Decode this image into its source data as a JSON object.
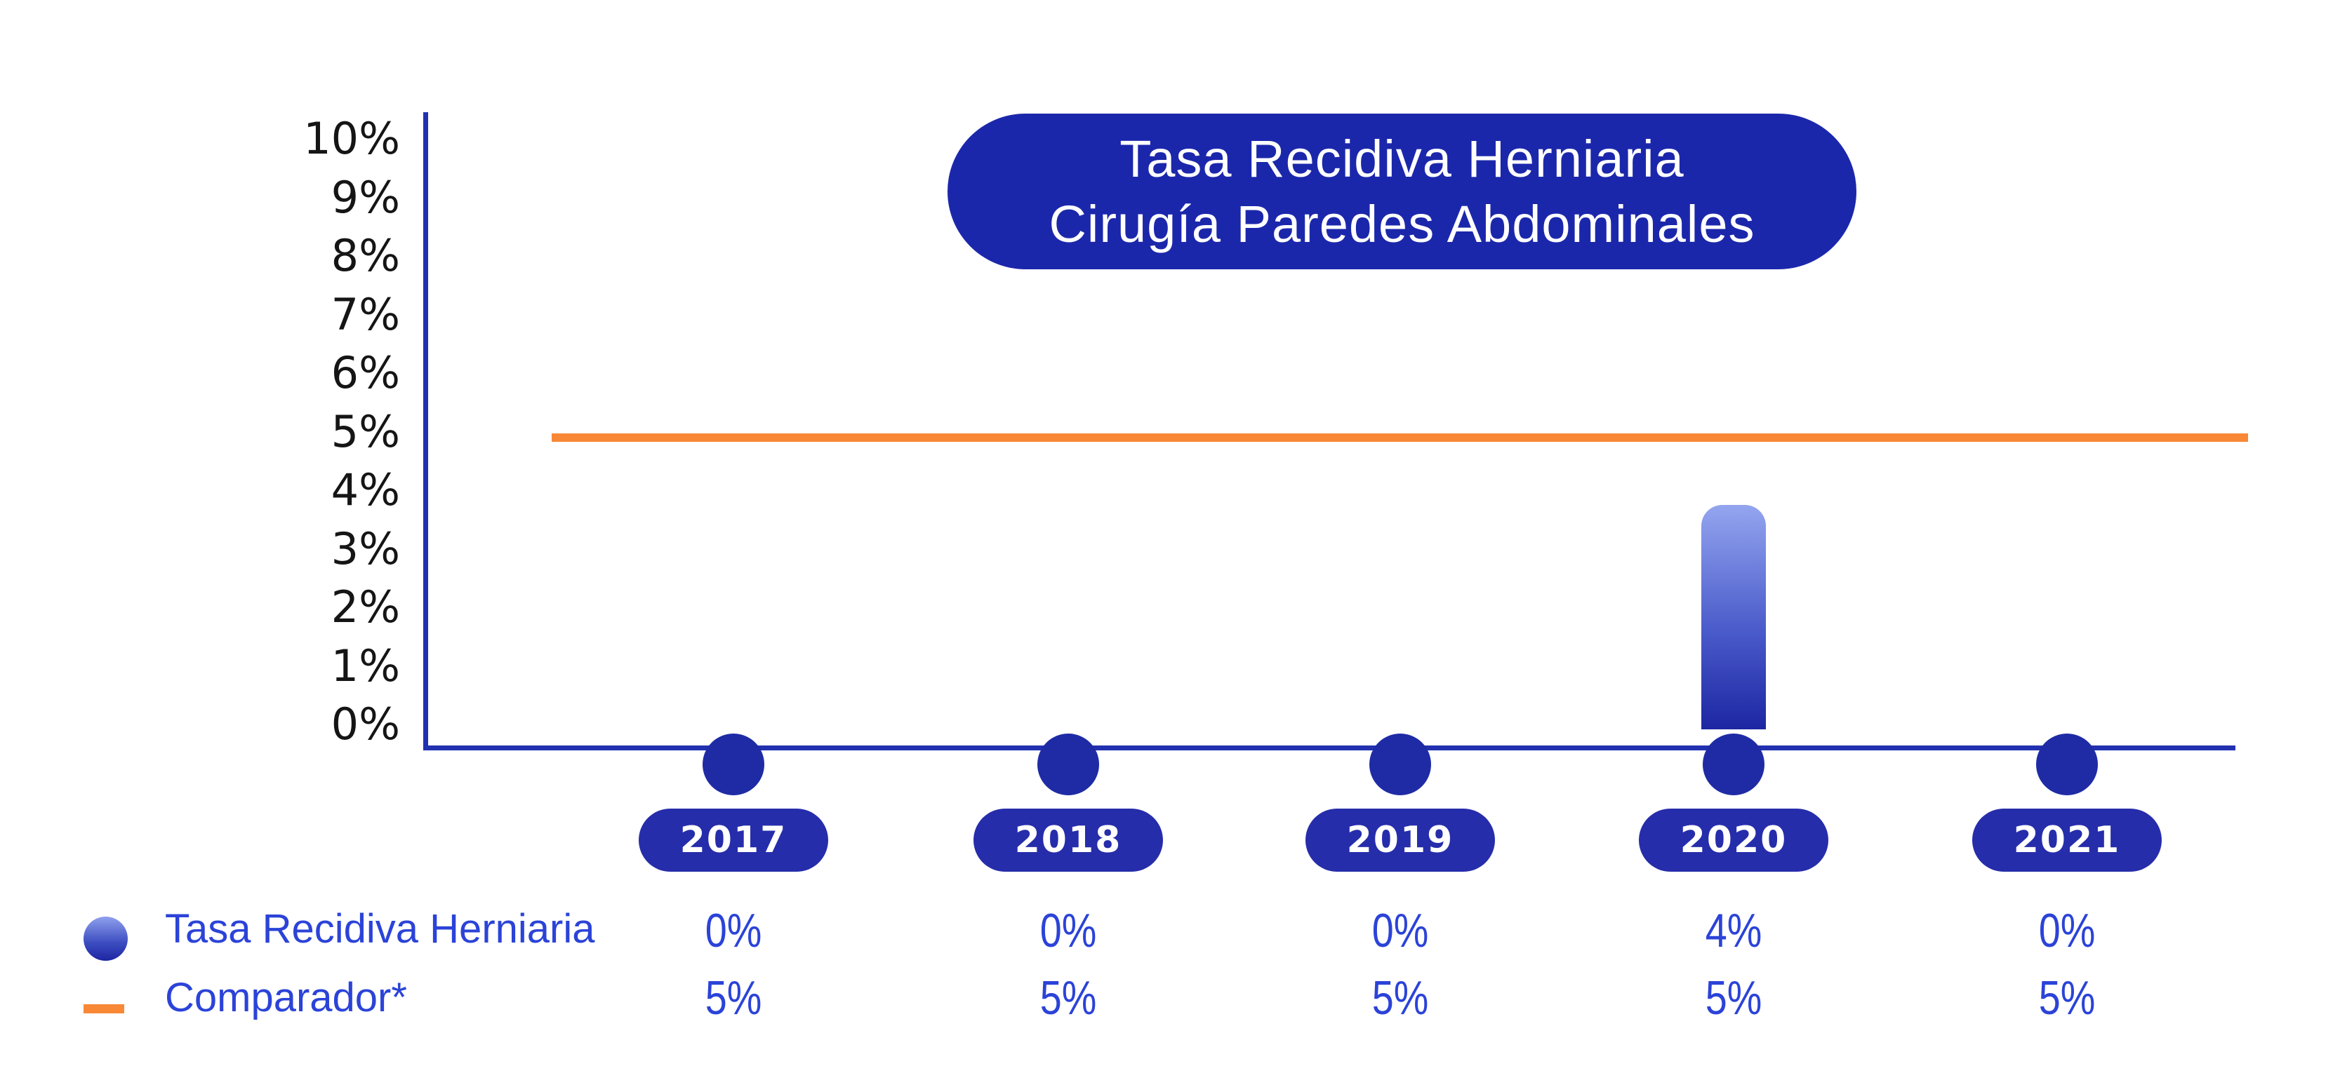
{
  "title": {
    "line1": "Tasa Recidiva Herniaria",
    "line2": "Cirugía Paredes Abdominales"
  },
  "chart_data": {
    "type": "bar",
    "title": "Tasa Recidiva Herniaria Cirugía Paredes Abdominales",
    "categories": [
      "2017",
      "2018",
      "2019",
      "2020",
      "2021"
    ],
    "series": [
      {
        "name": "Tasa Recidiva Herniaria",
        "type": "bar",
        "values": [
          0,
          0,
          0,
          4,
          0
        ],
        "display": [
          "0%",
          "0%",
          "0%",
          "4%",
          "0%"
        ]
      },
      {
        "name": "Comparador*",
        "type": "reference-line",
        "values": [
          5,
          5,
          5,
          5,
          5
        ],
        "display": [
          "5%",
          "5%",
          "5%",
          "5%",
          "5%"
        ]
      }
    ],
    "xlabel": "",
    "ylabel": "",
    "ylim": [
      0,
      10
    ],
    "y_tick_labels": [
      "10%",
      "9%",
      "8%",
      "7%",
      "6%",
      "5%",
      "4%",
      "3%",
      "2%",
      "1%",
      "0%"
    ],
    "grid": false,
    "legend_position": "bottom-left"
  },
  "legend": {
    "series1_label": "Tasa Recidiva Herniaria",
    "series2_label": "Comparador*"
  },
  "colors": {
    "background": "#ffffff",
    "title_pill": "#1b27ab",
    "year_pill": "#262daa",
    "axis": "#2231af",
    "dot": "#1f2ba5",
    "bar_gradient_top": "#94a5ef",
    "bar_gradient_bottom": "#1c26a2",
    "comparator_orange": "#f98836",
    "legend_text": "#2b43d8",
    "value_text": "#2b43d8",
    "tick_text": "#151515"
  }
}
